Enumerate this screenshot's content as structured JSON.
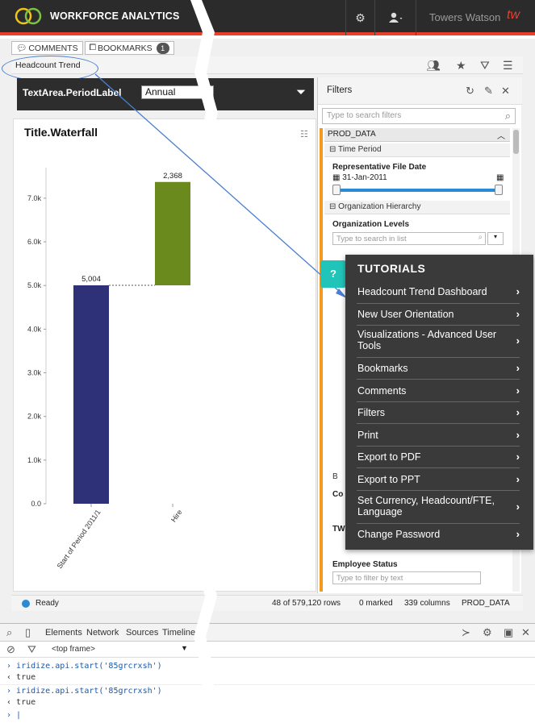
{
  "topbar": {
    "brand": "WORKFORCE ANALYTICS",
    "company": "Towers Watson",
    "company_logo": "tw",
    "icons": [
      "gear-icon",
      "user-icon"
    ],
    "accent": "#e8402d"
  },
  "tabs": [
    {
      "label": "COMMENTS",
      "icon": "comment-icon"
    },
    {
      "label": "BOOKMARKS",
      "icon": "bookmark-icon",
      "badge": "1"
    }
  ],
  "breadcrumb": {
    "title": "Headcount Trend"
  },
  "controls": {
    "period_label": "TextArea.PeriodLabel",
    "period_value": "Annual"
  },
  "chart_data": {
    "type": "bar",
    "title": "Title.Waterfall",
    "categories": [
      "Start of Period 2011/1",
      "Hire"
    ],
    "series": [
      {
        "values": [
          5004,
          2368
        ],
        "colors": [
          "#2e3177",
          "#6b8a1e"
        ]
      }
    ],
    "waterfall_base": [
      0,
      5004
    ],
    "data_labels": [
      "5,004",
      "2,368"
    ],
    "y_ticks": [
      "0.0",
      "1.0k",
      "2.0k",
      "3.0k",
      "4.0k",
      "5.0k",
      "6.0k",
      "7.0k"
    ],
    "ylim": [
      0,
      7700
    ],
    "grid": false
  },
  "filters": {
    "title": "Filters",
    "search_placeholder": "Type to search filters",
    "dataset": "PROD_DATA",
    "time_period": "Time Period",
    "rep_file_date_label": "Representative File Date",
    "rep_file_date_value": "31-Jan-2011",
    "org_hierarchy": "Organization Hierarchy",
    "org_levels_label": "Organization Levels",
    "org_search_placeholder": "Type to search in list",
    "employee_status_label": "Employee Status",
    "employee_status_placeholder": "Type to filter by text",
    "cut_labels": [
      "Co",
      "TW"
    ],
    "cut_section": "B"
  },
  "status": {
    "state": "Ready",
    "rows": "48 of 579,120 rows",
    "marked": "0 marked",
    "columns": "339 columns",
    "dataset": "PROD_DATA"
  },
  "devtools": {
    "tabs": [
      "Elements",
      "Network",
      "Sources",
      "Timeline"
    ],
    "frame": "<top frame>",
    "lines": [
      {
        "kind": "in",
        "text": "iridize.api.start('85grcrxsh')"
      },
      {
        "kind": "out",
        "text": "true"
      },
      {
        "kind": "in",
        "text": "iridize.api.start('85grcrxsh')"
      },
      {
        "kind": "out",
        "text": "true"
      }
    ]
  },
  "tutorials": {
    "badge": "?",
    "title": "TUTORIALS",
    "items": [
      "Headcount Trend Dashboard",
      "New User Orientation",
      "Visualizations - Advanced User Tools",
      "Bookmarks",
      "Comments",
      "Filters",
      "Print",
      "Export to PDF",
      "Export to PPT",
      "Set Currency, Headcount/FTE, Language",
      "Change Password"
    ]
  }
}
